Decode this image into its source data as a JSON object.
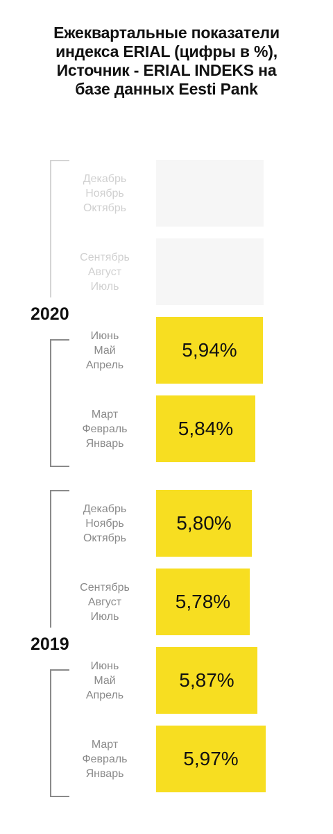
{
  "title_lines": [
    "Ежеквартальные показатели",
    "индекса ERIAL (цифры в %),",
    "Источник - ERIAL INDEKS на",
    "базе данных Eesti Pank"
  ],
  "colors": {
    "bar": "#f7de21",
    "empty": "#f6f6f6",
    "bracket": "#8a8a8a",
    "faded_text": "#d0d0d0"
  },
  "chart_data": {
    "type": "bar",
    "orientation": "horizontal",
    "title": "Ежеквартальные показатели индекса ERIAL (цифры в %), Источник - ERIAL INDEKS на базе данных Eesti Pank",
    "unit": "%",
    "years": [
      {
        "year": "2020",
        "quarters": [
          {
            "months": [
              "Декабрь",
              "Ноябрь",
              "Октябрь"
            ],
            "value": null,
            "label": ""
          },
          {
            "months": [
              "Сентябрь",
              "Август",
              "Июль"
            ],
            "value": null,
            "label": ""
          },
          {
            "months": [
              "Июнь",
              "Май",
              "Апрель"
            ],
            "value": 5.94,
            "label": "5,94%"
          },
          {
            "months": [
              "Март",
              "Февраль",
              "Январь"
            ],
            "value": 5.84,
            "label": "5,84%"
          }
        ]
      },
      {
        "year": "2019",
        "quarters": [
          {
            "months": [
              "Декабрь",
              "Ноябрь",
              "Октябрь"
            ],
            "value": 5.8,
            "label": "5,80%"
          },
          {
            "months": [
              "Сентябрь",
              "Август",
              "Июль"
            ],
            "value": 5.78,
            "label": "5,78%"
          },
          {
            "months": [
              "Июнь",
              "Май",
              "Апрель"
            ],
            "value": 5.87,
            "label": "5,87%"
          },
          {
            "months": [
              "Март",
              "Февраль",
              "Январь"
            ],
            "value": 5.97,
            "label": "5,97%"
          }
        ]
      }
    ]
  }
}
